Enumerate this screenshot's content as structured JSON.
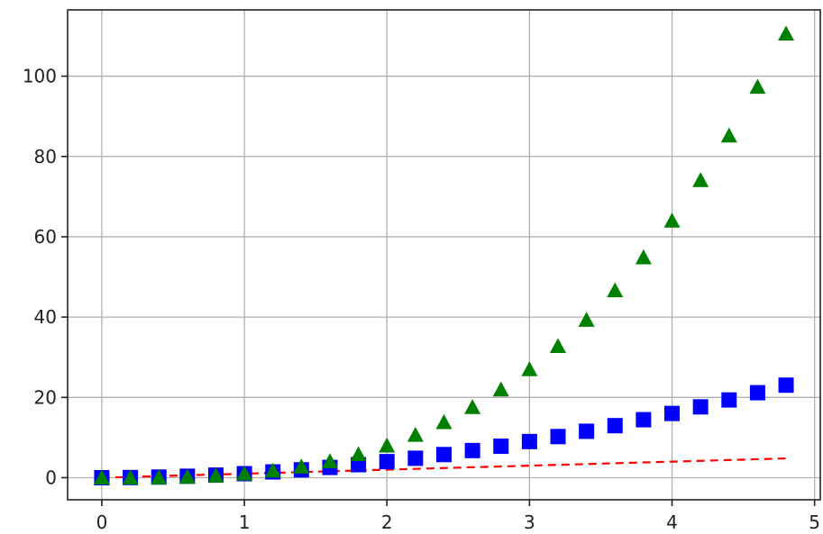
{
  "chart_data": {
    "type": "scatter",
    "title": "",
    "xlabel": "",
    "ylabel": "",
    "xlim": [
      -0.24,
      5.04
    ],
    "ylim": [
      -5.5,
      116.5
    ],
    "grid": true,
    "x_ticks": [
      0,
      1,
      2,
      3,
      4,
      5
    ],
    "x_tick_labels": [
      "0",
      "1",
      "2",
      "3",
      "4",
      "5"
    ],
    "y_ticks": [
      0,
      20,
      40,
      60,
      80,
      100
    ],
    "y_tick_labels": [
      "0",
      "20",
      "40",
      "60",
      "80",
      "100"
    ],
    "x": [
      0.0,
      0.2,
      0.4,
      0.6,
      0.8,
      1.0,
      1.2,
      1.4,
      1.6,
      1.8,
      2.0,
      2.2,
      2.4,
      2.6,
      2.8,
      3.0,
      3.2,
      3.4,
      3.6,
      3.8,
      4.0,
      4.2,
      4.4,
      4.6,
      4.8
    ],
    "series": [
      {
        "style": "red-dashed-line",
        "color": "#ff0000",
        "values": [
          0.0,
          0.2,
          0.4,
          0.6,
          0.8,
          1.0,
          1.2,
          1.4,
          1.6,
          1.8,
          2.0,
          2.2,
          2.4,
          2.6,
          2.8,
          3.0,
          3.2,
          3.4,
          3.6,
          3.8,
          4.0,
          4.2,
          4.4,
          4.6,
          4.8
        ]
      },
      {
        "style": "blue-squares",
        "color": "#0000ff",
        "values": [
          0.0,
          0.04,
          0.16,
          0.36,
          0.64,
          1.0,
          1.44,
          1.96,
          2.56,
          3.24,
          4.0,
          4.84,
          5.76,
          6.76,
          7.84,
          9.0,
          10.24,
          11.56,
          12.96,
          14.44,
          16.0,
          17.64,
          19.36,
          21.16,
          23.04
        ]
      },
      {
        "style": "green-triangles",
        "color": "#008000",
        "values": [
          0.0,
          0.008,
          0.064,
          0.216,
          0.512,
          1.0,
          1.728,
          2.744,
          4.096,
          5.832,
          8.0,
          10.648,
          13.824,
          17.576,
          21.952,
          27.0,
          32.768,
          39.304,
          46.656,
          54.872,
          64.0,
          74.088,
          85.184,
          97.336,
          110.592
        ]
      }
    ]
  }
}
